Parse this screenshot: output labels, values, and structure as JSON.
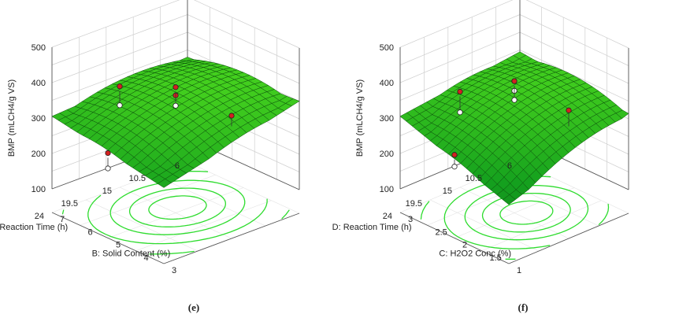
{
  "chart_data": [
    {
      "type": "surface3d",
      "caption": "(e)",
      "zlabel": "BMP (mLCH4/g VS)",
      "zticks": [
        "100",
        "200",
        "300",
        "400",
        "500"
      ],
      "zlim": [
        100,
        500
      ],
      "xlabel": "B: Solid Content (%)",
      "xticks": [
        "3",
        "4",
        "5",
        "6",
        "7"
      ],
      "xlim": [
        3,
        7
      ],
      "ylabel": "D: Reaction Time (h)",
      "yticks": [
        "6",
        "10.5",
        "15",
        "19.5",
        "24"
      ],
      "ylim": [
        6,
        24
      ],
      "surface_corners": {
        "front": 248,
        "left": 305,
        "right": 350,
        "back": 330
      },
      "surface_peak": {
        "x": 5.2,
        "y": 14,
        "z": 375
      },
      "design_points": [
        {
          "x": 5,
          "y": 15,
          "z_obs": 365,
          "z_pred": 375,
          "above": true
        },
        {
          "x": 5,
          "y": 15,
          "z_obs": 336,
          "z_pred": 375,
          "above": false
        },
        {
          "x": 3,
          "y": 15,
          "z_obs": 380,
          "z_pred": 350,
          "above": true
        },
        {
          "x": 7,
          "y": 15,
          "z_obs": 265,
          "z_pred": 305,
          "above": false
        },
        {
          "x": 5,
          "y": 24,
          "z_obs": 230,
          "z_pred": 260,
          "above": false
        }
      ],
      "grid": true,
      "surface_color": "#22cc22",
      "contour_color": "#2edc2e",
      "point_color": "#d42020"
    },
    {
      "type": "surface3d",
      "caption": "(f)",
      "zlabel": "BMP (mLCH4/g VS)",
      "zticks": [
        "100",
        "200",
        "300",
        "400",
        "500"
      ],
      "zlim": [
        100,
        500
      ],
      "xlabel": "C: H2O2 Conc (%)",
      "xticks": [
        "1",
        "1.5",
        "2",
        "2.5",
        "3"
      ],
      "xlim": [
        1,
        3
      ],
      "ylabel": "D: Reaction Time (h)",
      "yticks": [
        "6",
        "10.5",
        "15",
        "19.5",
        "24"
      ],
      "ylim": [
        6,
        24
      ],
      "surface_corners": {
        "front": 200,
        "left": 305,
        "right": 315,
        "back": 345
      },
      "surface_peak": {
        "x": 1.9,
        "y": 14,
        "z": 395
      },
      "design_points": [
        {
          "x": 2,
          "y": 15,
          "z_obs": 378,
          "z_pred": 392,
          "above": false
        },
        {
          "x": 2,
          "y": 15,
          "z_obs": 352,
          "z_pred": 392,
          "above": false
        },
        {
          "x": 1,
          "y": 15,
          "z_obs": 395,
          "z_pred": 350,
          "above": true
        },
        {
          "x": 3,
          "y": 15,
          "z_obs": 245,
          "z_pred": 290,
          "above": false
        },
        {
          "x": 2,
          "y": 24,
          "z_obs": 235,
          "z_pred": 255,
          "above": false
        }
      ],
      "grid": true,
      "surface_color": "#22cc22",
      "contour_color": "#2edc2e",
      "point_color": "#d42020"
    }
  ]
}
